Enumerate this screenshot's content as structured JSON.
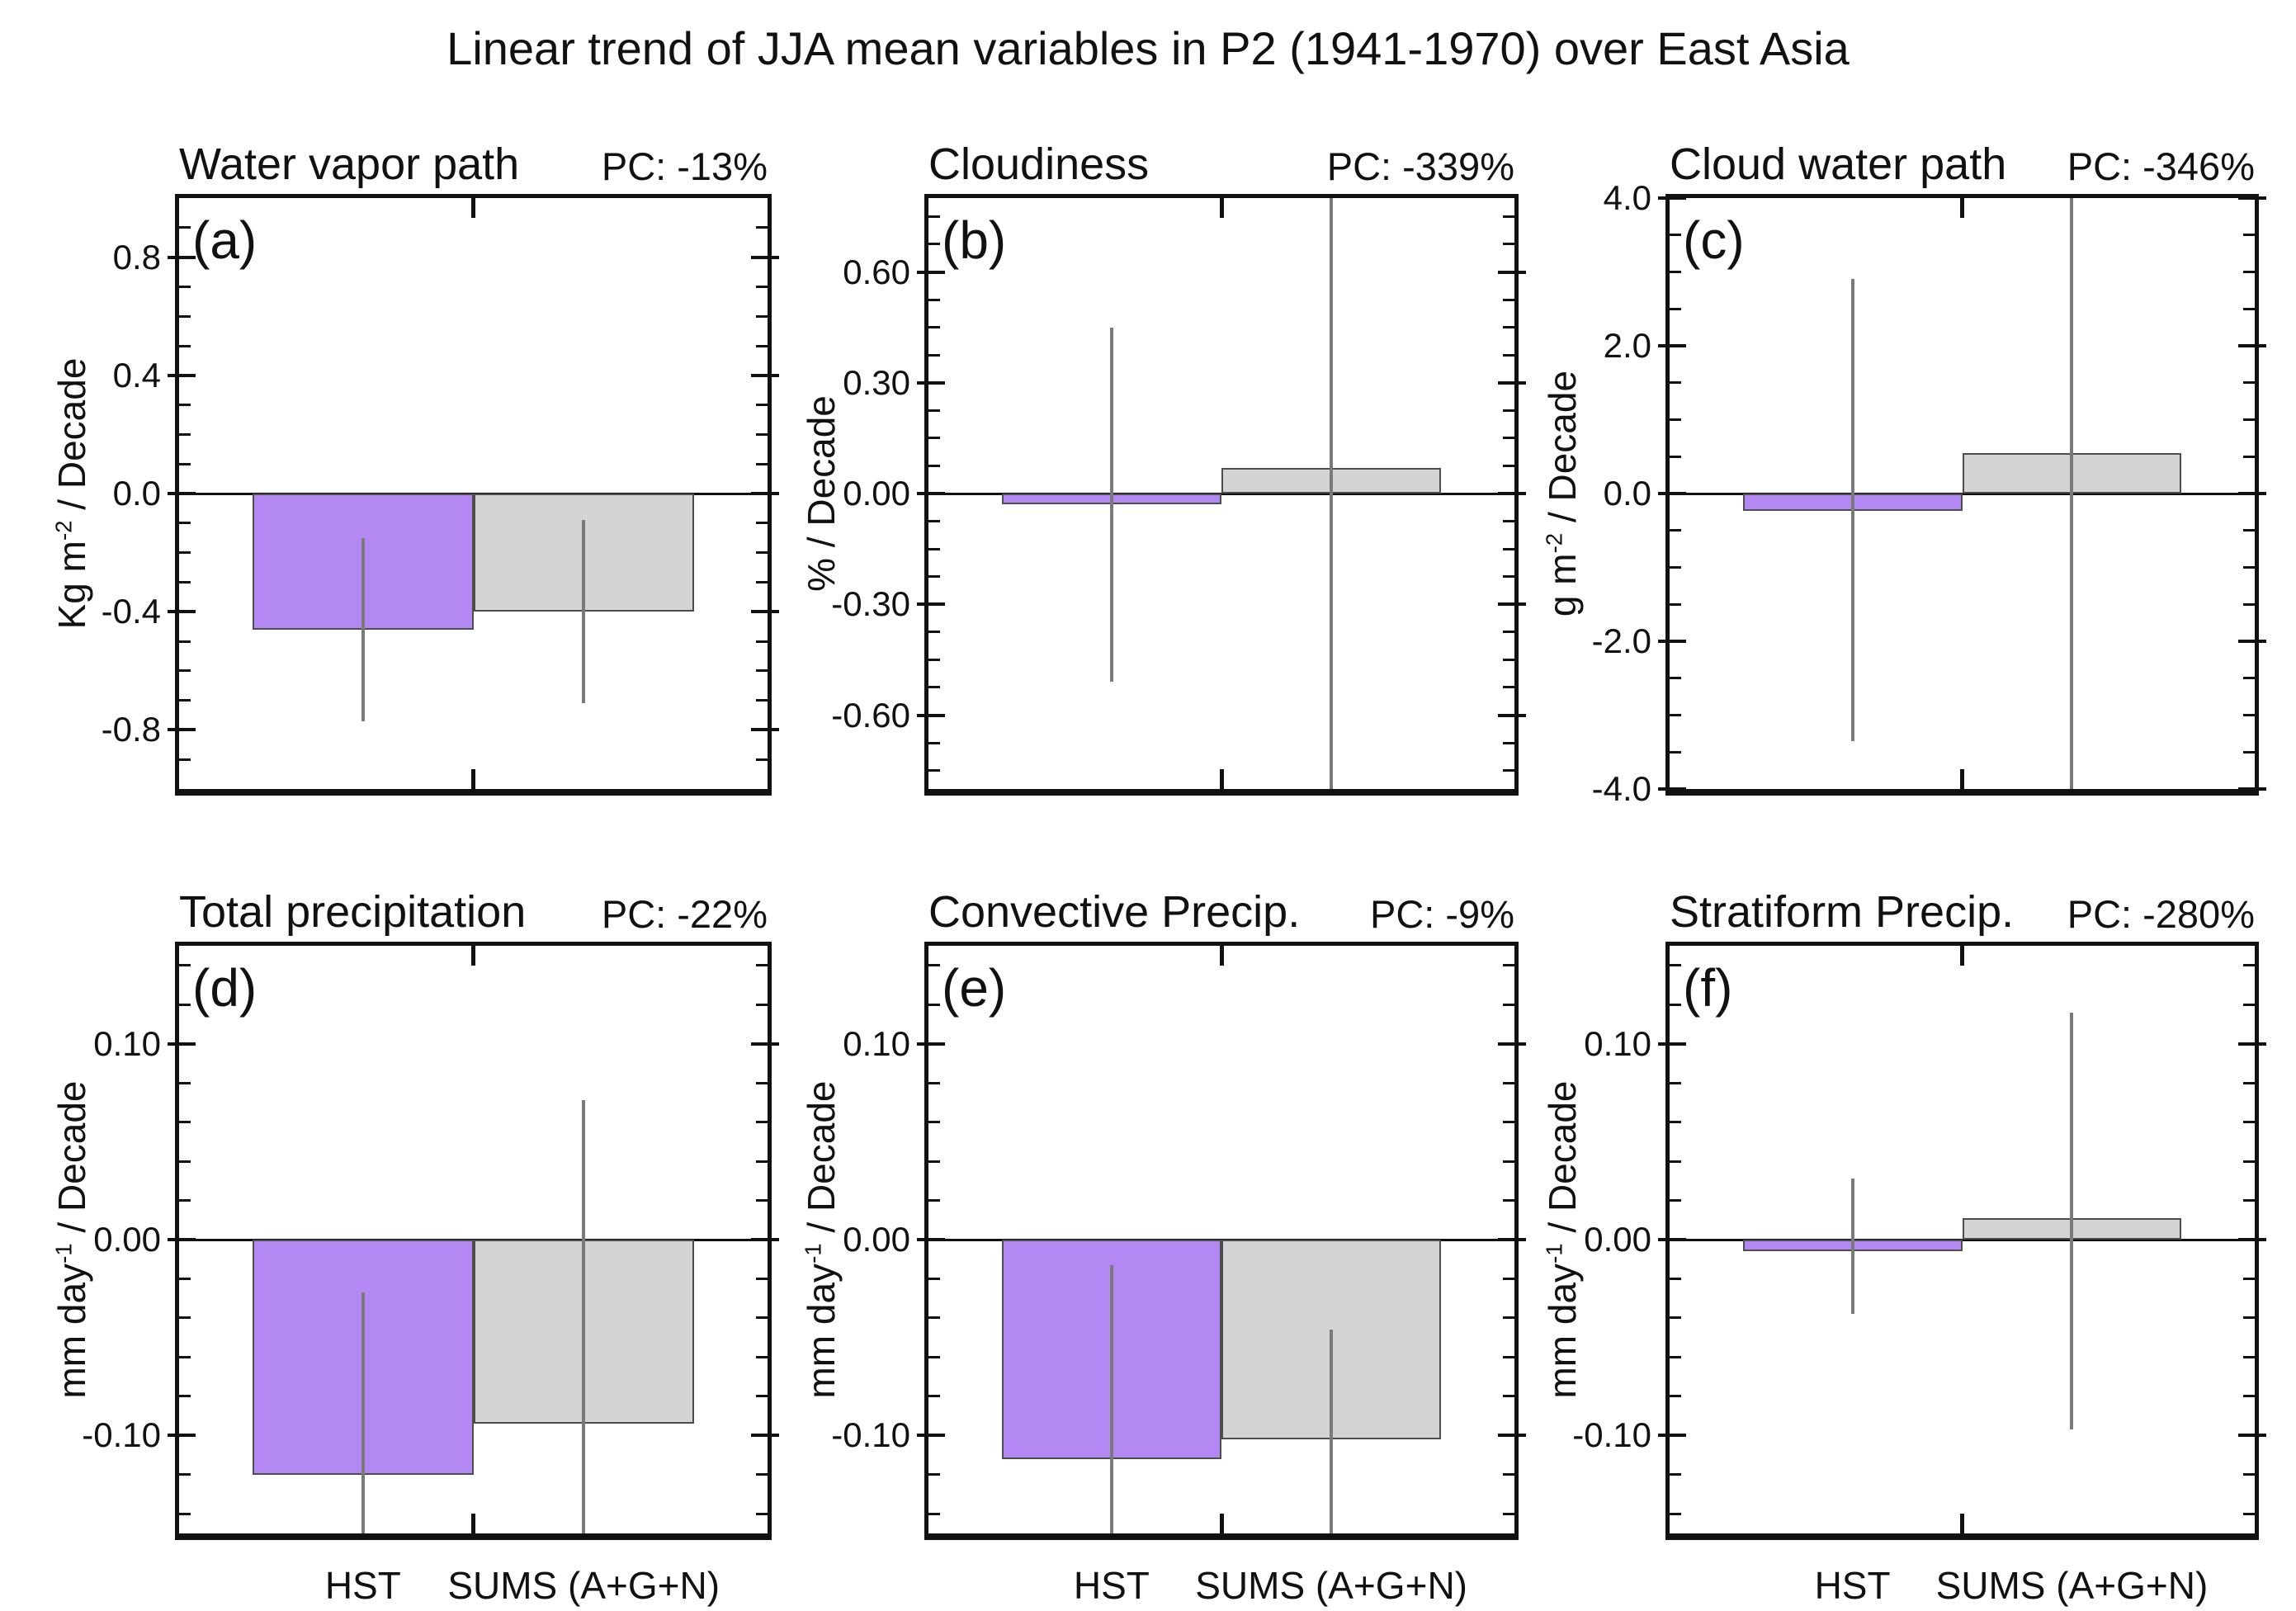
{
  "figure": {
    "title": "Linear trend of JJA mean variables in P2 (1941-1970) over East Asia"
  },
  "colors": {
    "hst_bar": "#b388f2",
    "sums_bar": "#d4d4d4",
    "bar_border": "#4d4d4d",
    "error_line": "#7a7a7a",
    "frame": "#111111",
    "text": "#111111"
  },
  "chart_data": {
    "type": "bar",
    "title": "Linear trend of JJA mean variables in P2 (1941-1970) over East Asia",
    "categories": [
      "HST",
      "SUMS (A+G+N)"
    ],
    "legend_position": "none",
    "grid": false,
    "panels": [
      {
        "letter": "(a)",
        "title": "Water vapor path",
        "pc": "PC: -13%",
        "ylabel_parts": [
          {
            "t": "Kg m"
          },
          {
            "t": "-2",
            "sup": true
          },
          {
            "t": " / Decade"
          }
        ],
        "ylim": [
          -1.0,
          1.0
        ],
        "yticks": [
          {
            "v": 0.8,
            "l": "0.8"
          },
          {
            "v": 0.4,
            "l": "0.4"
          },
          {
            "v": 0.0,
            "l": "0.0"
          },
          {
            "v": -0.4,
            "l": "-0.4"
          },
          {
            "v": -0.8,
            "l": "-0.8"
          }
        ],
        "minor_step": 0.1,
        "show_x_labels": false,
        "bars": [
          {
            "series": "HST",
            "value": -0.46,
            "err_high": -0.15,
            "err_low": -0.77
          },
          {
            "series": "SUMS (A+G+N)",
            "value": -0.4,
            "err_high": -0.09,
            "err_low": -0.71
          }
        ]
      },
      {
        "letter": "(b)",
        "title": "Cloudiness",
        "pc": "PC: -339%",
        "ylabel_parts": [
          {
            "t": "% / Decade"
          }
        ],
        "ylim": [
          -0.8,
          0.8
        ],
        "yticks": [
          {
            "v": 0.6,
            "l": "0.60"
          },
          {
            "v": 0.3,
            "l": "0.30"
          },
          {
            "v": 0.0,
            "l": "0.00"
          },
          {
            "v": -0.3,
            "l": "-0.30"
          },
          {
            "v": -0.6,
            "l": "-0.60"
          }
        ],
        "minor_step": 0.075,
        "show_x_labels": false,
        "bars": [
          {
            "series": "HST",
            "value": -0.03,
            "err_high": 0.45,
            "err_low": -0.51
          },
          {
            "series": "SUMS (A+G+N)",
            "value": 0.07,
            "err_high": 0.8,
            "err_low": -0.8
          }
        ]
      },
      {
        "letter": "(c)",
        "title": "Cloud water path",
        "pc": "PC: -346%",
        "ylabel_parts": [
          {
            "t": "g m"
          },
          {
            "t": "-2",
            "sup": true
          },
          {
            "t": " / Decade"
          }
        ],
        "ylim": [
          -4.0,
          4.0
        ],
        "yticks": [
          {
            "v": 4.0,
            "l": "4.0"
          },
          {
            "v": 2.0,
            "l": "2.0"
          },
          {
            "v": 0.0,
            "l": "0.0"
          },
          {
            "v": -2.0,
            "l": "-2.0"
          },
          {
            "v": -4.0,
            "l": "-4.0"
          }
        ],
        "minor_step": 0.5,
        "show_x_labels": false,
        "bars": [
          {
            "series": "HST",
            "value": -0.24,
            "err_high": 2.9,
            "err_low": -3.35
          },
          {
            "series": "SUMS (A+G+N)",
            "value": 0.55,
            "err_high": 4.0,
            "err_low": -4.0
          }
        ]
      },
      {
        "letter": "(d)",
        "title": "Total precipitation",
        "pc": "PC: -22%",
        "ylabel_parts": [
          {
            "t": "mm day"
          },
          {
            "t": "-1",
            "sup": true
          },
          {
            "t": " / Decade"
          }
        ],
        "ylim": [
          -0.15,
          0.15
        ],
        "yticks": [
          {
            "v": 0.1,
            "l": "0.10"
          },
          {
            "v": 0.0,
            "l": "0.00"
          },
          {
            "v": -0.1,
            "l": "-0.10"
          }
        ],
        "minor_step": 0.02,
        "show_x_labels": true,
        "bars": [
          {
            "series": "HST",
            "value": -0.12,
            "err_high": -0.027,
            "err_low": -0.15
          },
          {
            "series": "SUMS (A+G+N)",
            "value": -0.094,
            "err_high": 0.071,
            "err_low": -0.15
          }
        ]
      },
      {
        "letter": "(e)",
        "title": "Convective Precip.",
        "pc": "PC: -9%",
        "ylabel_parts": [
          {
            "t": "mm day"
          },
          {
            "t": "-1",
            "sup": true
          },
          {
            "t": " / Decade"
          }
        ],
        "ylim": [
          -0.15,
          0.15
        ],
        "yticks": [
          {
            "v": 0.1,
            "l": "0.10"
          },
          {
            "v": 0.0,
            "l": "0.00"
          },
          {
            "v": -0.1,
            "l": "-0.10"
          }
        ],
        "minor_step": 0.02,
        "show_x_labels": true,
        "bars": [
          {
            "series": "HST",
            "value": -0.112,
            "err_high": -0.013,
            "err_low": -0.15
          },
          {
            "series": "SUMS (A+G+N)",
            "value": -0.102,
            "err_high": -0.046,
            "err_low": -0.15
          }
        ]
      },
      {
        "letter": "(f)",
        "title": "Stratiform Precip.",
        "pc": "PC: -280%",
        "ylabel_parts": [
          {
            "t": "mm day"
          },
          {
            "t": "-1",
            "sup": true
          },
          {
            "t": " / Decade"
          }
        ],
        "ylim": [
          -0.15,
          0.15
        ],
        "yticks": [
          {
            "v": 0.1,
            "l": "0.10"
          },
          {
            "v": 0.0,
            "l": "0.00"
          },
          {
            "v": -0.1,
            "l": "-0.10"
          }
        ],
        "minor_step": 0.02,
        "show_x_labels": true,
        "bars": [
          {
            "series": "HST",
            "value": -0.006,
            "err_high": 0.031,
            "err_low": -0.038
          },
          {
            "series": "SUMS (A+G+N)",
            "value": 0.011,
            "err_high": 0.116,
            "err_low": -0.097
          }
        ]
      }
    ]
  }
}
